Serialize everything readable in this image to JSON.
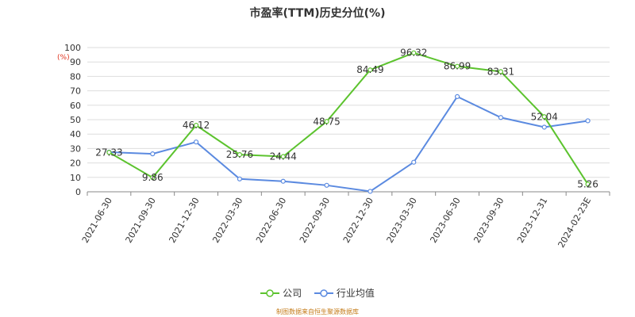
{
  "chart_data": {
    "type": "line",
    "title": "市盈率(TTM)历史分位(%)",
    "ylabel": "(%)",
    "ylim": [
      0,
      100
    ],
    "yticks": [
      0,
      10,
      20,
      30,
      40,
      50,
      60,
      70,
      80,
      90,
      100
    ],
    "grid": true,
    "legend_position": "bottom",
    "categories": [
      "2021-06-30",
      "2021-09-30",
      "2021-12-30",
      "2022-03-30",
      "2022-06-30",
      "2022-09-30",
      "2022-12-30",
      "2023-03-30",
      "2023-06-30",
      "2023-09-30",
      "2023-12-31",
      "2024-02-23E"
    ],
    "series": [
      {
        "name": "公司",
        "color": "#5cc32e",
        "values": [
          27.33,
          9.86,
          46.12,
          25.76,
          24.44,
          48.75,
          84.49,
          96.32,
          86.99,
          83.31,
          52.04,
          5.26
        ],
        "labels": [
          "27.33",
          "9.86",
          "46.12",
          "25.76",
          "24.44",
          "48.75",
          "84.49",
          "96.32",
          "86.99",
          "83.31",
          "52.04",
          "5.26"
        ]
      },
      {
        "name": "行业均值",
        "color": "#5b8ae0",
        "values": [
          27.5,
          26.3,
          34.5,
          8.9,
          7.3,
          4.5,
          0.3,
          20.5,
          66,
          51.5,
          44.8,
          49.2
        ]
      }
    ]
  },
  "source": "制图数据来自恒生聚源数据库",
  "colors": {
    "unit": "#e0331f",
    "source": "#c47b18",
    "axis": "#333333",
    "grid": "#dddddd"
  }
}
